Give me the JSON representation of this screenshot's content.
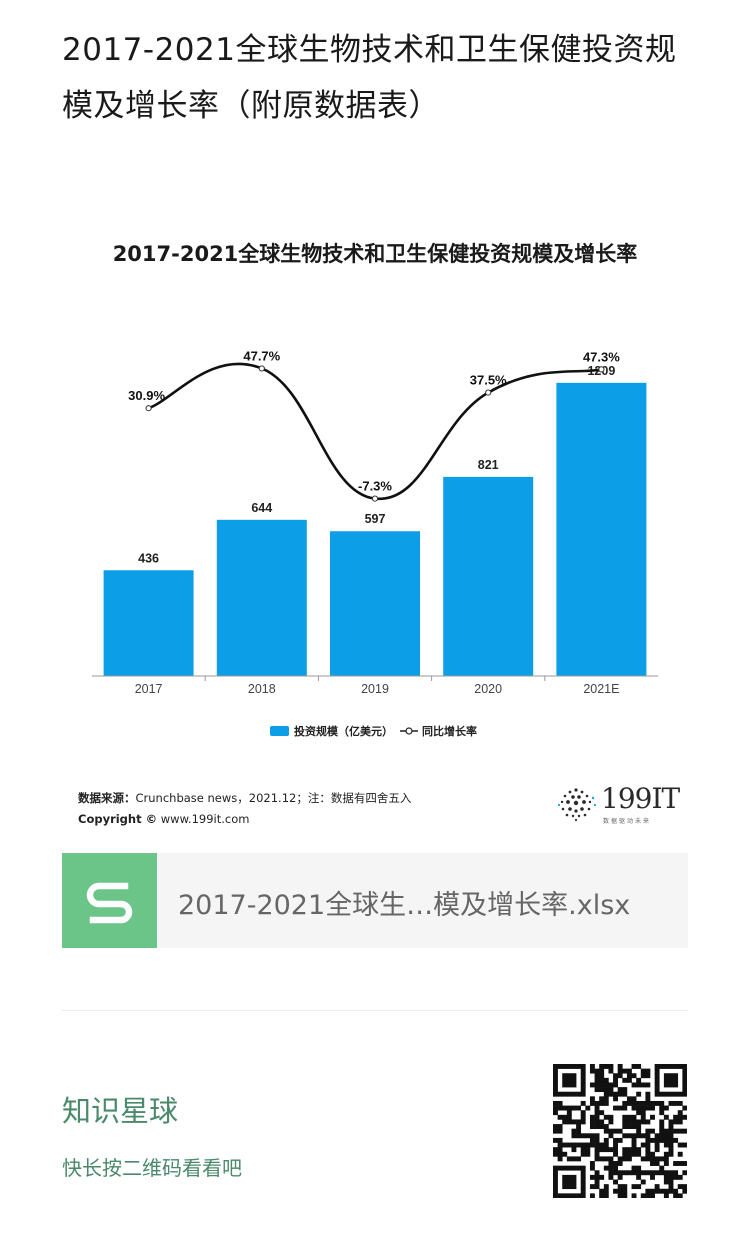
{
  "post": {
    "title": "2017-2021全球生物技术和卫生保健投资规模及增长率（附原数据表）"
  },
  "chart_data": {
    "type": "bar",
    "title": "2017-2021全球生物技术和卫生保健投资规模及增长率",
    "categories": [
      "2017",
      "2018",
      "2019",
      "2020",
      "2021E"
    ],
    "series": [
      {
        "name": "投资规模（亿美元）",
        "type": "bar",
        "values": [
          436,
          644,
          597,
          821,
          1209
        ],
        "labels": [
          "436",
          "644",
          "597",
          "821",
          "1209"
        ],
        "color": "#0c9fe8"
      },
      {
        "name": "同比增长率",
        "type": "line",
        "values": [
          30.9,
          47.7,
          -7.3,
          37.5,
          47.3
        ],
        "labels": [
          "30.9%",
          "47.7%",
          "-7.3%",
          "37.5%",
          "47.3%"
        ],
        "color": "#111111"
      }
    ],
    "bar_ylim": [
      0,
      1600
    ],
    "line_ylim": [
      -10,
      50
    ],
    "legend_position": "bottom",
    "grid": false
  },
  "source": {
    "label": "数据来源：",
    "text": "Crunchbase news，2021.12；注：数据有四舍五入",
    "copyright_label": "Copyright ©",
    "copyright_text": "www.199it.com"
  },
  "brand": {
    "name": "199IT",
    "tagline": "数据驱动未来",
    "icon": "dotted-globe-logo"
  },
  "attachment": {
    "icon": "sheet-s-icon",
    "filename": "2017-2021全球生…模及增长率.xlsx",
    "color": "#6bc488"
  },
  "planet": {
    "title": "知识星球",
    "subtitle": "快长按二维码看看吧",
    "color": "#4a8a6b",
    "qr_icon": "qr-code-icon"
  }
}
